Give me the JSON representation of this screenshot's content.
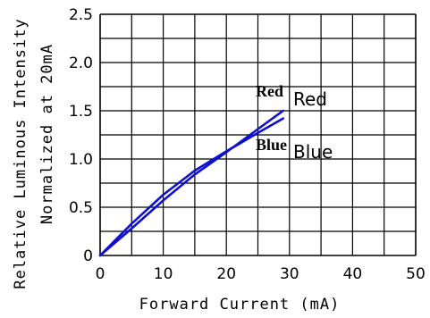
{
  "chart_data": {
    "type": "line",
    "xlabel": "Forward Current (mA)",
    "ylabel_line1": "Relative Luminous Intensity",
    "ylabel_line2": "Normalized at 20mA",
    "xlim": [
      0,
      50
    ],
    "ylim": [
      0,
      2.5
    ],
    "x_ticks": [
      "0",
      "10",
      "20",
      "30",
      "40",
      "50"
    ],
    "y_ticks": [
      "0",
      "0.5",
      "1.0",
      "1.5",
      "2.0",
      "2.5"
    ],
    "grid": true,
    "line_color": "#1010cc",
    "series": [
      {
        "name": "Red",
        "bold_label": "Red",
        "plain_label": "Red",
        "x": [
          0,
          5,
          10,
          15,
          20,
          25,
          29
        ],
        "y": [
          0,
          0.28,
          0.57,
          0.84,
          1.07,
          1.31,
          1.5
        ]
      },
      {
        "name": "Blue",
        "bold_label": "Blue",
        "plain_label": "Blue",
        "x": [
          0,
          5,
          10,
          15,
          20,
          25,
          29
        ],
        "y": [
          0,
          0.33,
          0.63,
          0.88,
          1.08,
          1.27,
          1.42
        ]
      }
    ]
  }
}
